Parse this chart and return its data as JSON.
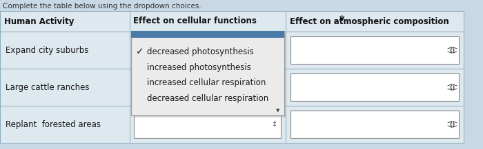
{
  "title": "Complete the table below using the dropdown choices.",
  "header": [
    "Human Activity",
    "Effect on cellular functions",
    "Effect on atmospheric composition"
  ],
  "rows": [
    [
      "Expand city suburbs",
      "",
      ""
    ],
    [
      "Large cattle ranches",
      "",
      ""
    ],
    [
      "Replant  forested areas",
      "",
      ""
    ]
  ],
  "dropdown_items": [
    "decreased photosynthesis",
    "increased photosynthesis",
    "increased cellular respiration",
    "decreased cellular respiration"
  ],
  "checkmark": "✓",
  "bg_color": "#c8d8e4",
  "table_bg": "#dde8ef",
  "dropdown_bg": "#ebebeb",
  "dropdown_border": "#aaaaaa",
  "dropdown_top_bar": "#4a7aa8",
  "cell_border": "#8aaabb",
  "text_color": "#1a1a1a",
  "title_color": "#333333",
  "header_text_color": "#111111",
  "white": "#ffffff"
}
